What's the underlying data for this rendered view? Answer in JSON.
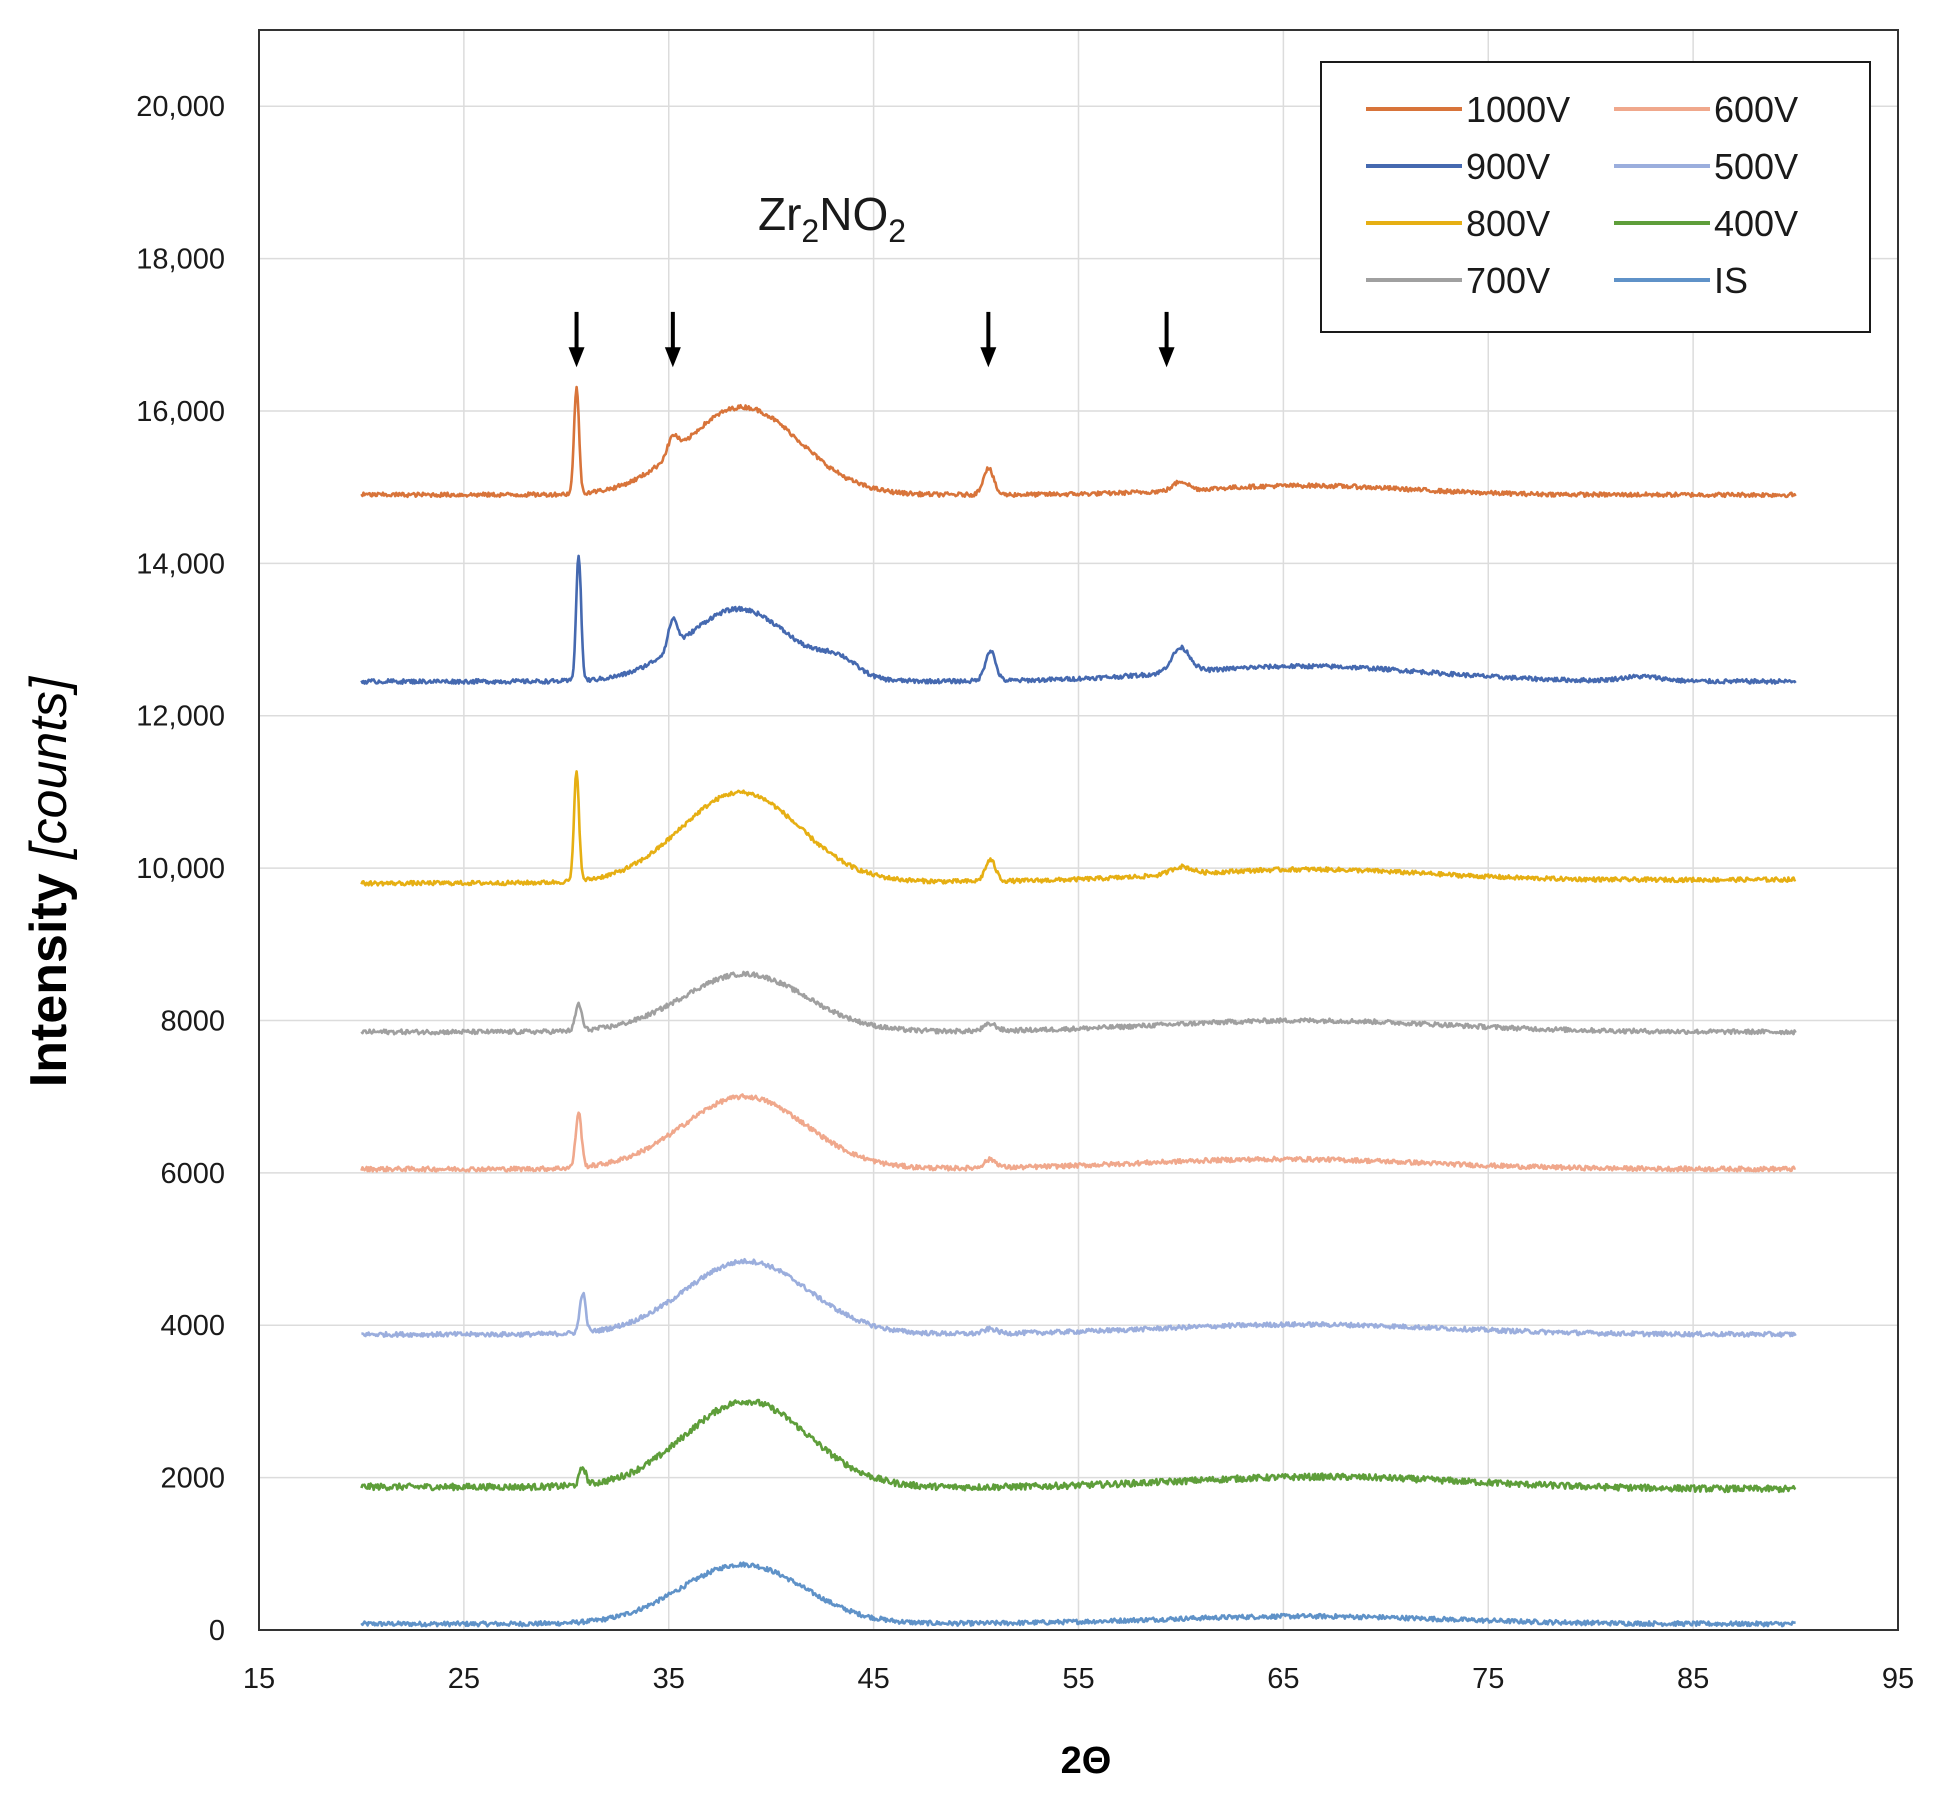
{
  "chart_data": {
    "type": "line",
    "title": "",
    "xlabel": "2Θ",
    "ylabel_main": "Intensity ",
    "ylabel_unit": "[counts]",
    "xlim": [
      15,
      95
    ],
    "ylim": [
      0,
      21000
    ],
    "xticks": [
      15,
      25,
      35,
      45,
      55,
      65,
      75,
      85,
      95
    ],
    "xtick_labels": [
      "15",
      "25",
      "35",
      "45",
      "55",
      "65",
      "75",
      "85",
      "95"
    ],
    "yticks": [
      0,
      2000,
      4000,
      6000,
      8000,
      10000,
      12000,
      14000,
      16000,
      18000,
      20000
    ],
    "ytick_labels": [
      "0",
      "2000",
      "4000",
      "6000",
      "8000",
      "10,000",
      "12,000",
      "14,000",
      "16,000",
      "18,000",
      "20,000"
    ],
    "grid": true,
    "legend_position": "top-right",
    "annotation": {
      "base": "Zr",
      "sub1": "2",
      "mid": "NO",
      "sub2": "2"
    },
    "marker_positions_2theta": [
      30.5,
      35.2,
      50.6,
      59.3
    ],
    "marker_top_value": 17300,
    "marker_bottom_value": 16600,
    "x_range": [
      20,
      90
    ],
    "series": [
      {
        "name": "1000V",
        "color": "#D8743A",
        "baseline_start": 14900,
        "baseline_end": 14900,
        "noise": 28,
        "peaks": [
          [
            30.5,
            1400,
            0.12
          ],
          [
            35.2,
            230,
            0.25
          ],
          [
            38.6,
            1150,
            2.8
          ],
          [
            50.6,
            350,
            0.25
          ],
          [
            60.0,
            120,
            0.35
          ],
          [
            66,
            120,
            5
          ]
        ]
      },
      {
        "name": "900V",
        "color": "#4569B0",
        "baseline_start": 12450,
        "baseline_end": 12450,
        "noise": 28,
        "peaks": [
          [
            30.6,
            1650,
            0.12
          ],
          [
            35.2,
            380,
            0.22
          ],
          [
            38.4,
            950,
            2.6
          ],
          [
            43.3,
            200,
            0.9
          ],
          [
            50.7,
            400,
            0.25
          ],
          [
            60.0,
            320,
            0.45
          ],
          [
            66,
            200,
            6
          ],
          [
            82.5,
            60,
            1
          ]
        ]
      },
      {
        "name": "800V",
        "color": "#E6AF13",
        "baseline_start": 9800,
        "baseline_end": 9850,
        "noise": 28,
        "peaks": [
          [
            30.5,
            1450,
            0.12
          ],
          [
            38.5,
            1180,
            2.9
          ],
          [
            50.7,
            280,
            0.25
          ],
          [
            60.0,
            100,
            0.5
          ],
          [
            66,
            150,
            6
          ]
        ]
      },
      {
        "name": "700V",
        "color": "#A0A0A0",
        "baseline_start": 7850,
        "baseline_end": 7850,
        "noise": 30,
        "peaks": [
          [
            30.6,
            350,
            0.15
          ],
          [
            38.7,
            760,
            3.0
          ],
          [
            50.7,
            90,
            0.3
          ],
          [
            66,
            150,
            7
          ]
        ]
      },
      {
        "name": "600V",
        "color": "#F0A88C",
        "baseline_start": 6050,
        "baseline_end": 6050,
        "noise": 30,
        "peaks": [
          [
            30.6,
            720,
            0.14
          ],
          [
            38.7,
            950,
            3.0
          ],
          [
            50.7,
            110,
            0.3
          ],
          [
            65,
            130,
            7
          ]
        ]
      },
      {
        "name": "500V",
        "color": "#9BAEDD",
        "baseline_start": 3880,
        "baseline_end": 3880,
        "noise": 30,
        "peaks": [
          [
            30.8,
            520,
            0.14
          ],
          [
            38.8,
            960,
            3.0
          ],
          [
            50.7,
            60,
            0.3
          ],
          [
            66,
            130,
            7
          ]
        ]
      },
      {
        "name": "400V",
        "color": "#5E9E3A",
        "baseline_start": 1880,
        "baseline_end": 1850,
        "noise": 42,
        "peaks": [
          [
            30.8,
            230,
            0.15
          ],
          [
            38.8,
            1130,
            3.0
          ],
          [
            67,
            150,
            7
          ]
        ]
      },
      {
        "name": "IS",
        "color": "#5F92C8",
        "baseline_start": 80,
        "baseline_end": 80,
        "noise": 30,
        "peaks": [
          [
            38.6,
            780,
            3.0
          ],
          [
            66,
            100,
            7
          ]
        ]
      }
    ]
  }
}
